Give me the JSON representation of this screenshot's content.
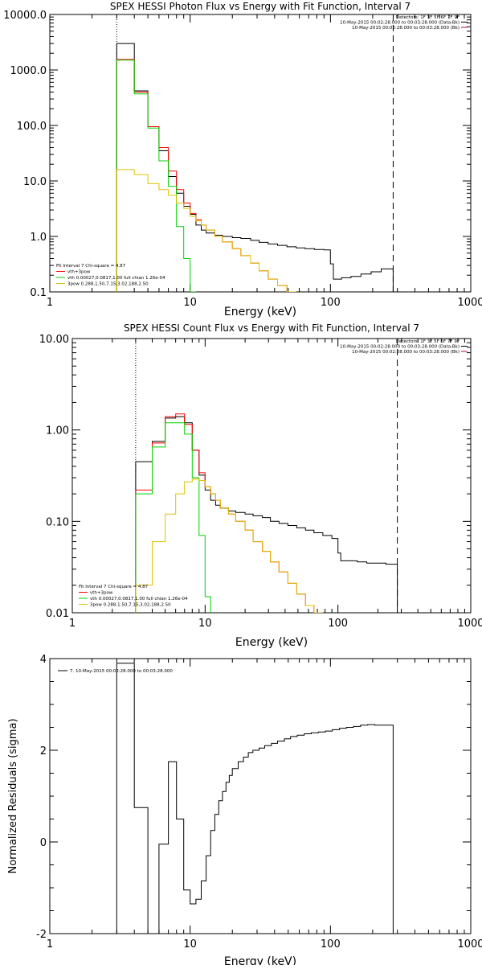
{
  "chart_data": [
    {
      "type": "line",
      "title": "SPEX HESSI Photon Flux vs Energy with Fit Function, Interval 7",
      "xlabel": "Energy (keV)",
      "ylabel": "",
      "xscale": "log",
      "yscale": "log",
      "xlim": [
        1,
        1000
      ],
      "ylim": [
        0.1,
        10000
      ],
      "xticks": [
        1,
        10,
        100,
        1000
      ],
      "xtick_labels": [
        "1",
        "10",
        "100",
        "1000"
      ],
      "yticks": [
        0.1,
        1,
        10,
        100,
        1000,
        10000
      ],
      "ytick_labels": [
        "0.1",
        "1.0",
        "10.0",
        "100.0",
        "1000.0",
        "10000.0"
      ],
      "vlines": [
        {
          "x": 3,
          "style": "dotted"
        },
        {
          "x": 280,
          "style": "dashed"
        }
      ],
      "top_legend": [
        "Detectors: 1F 3F 5F 6F 7F 9F",
        "10-May-2015 00:02:28.000 to 00:03:28.000 (Data-Bk)",
        "10-May-2015 00:02:28.000 to 00:03:28.000 (Bk)"
      ],
      "fit_legend": [
        "Fit Interval 7   Chi-square = 4.87",
        "vth+3pow",
        "vth 0.00027,0.0817,1.00   full chian 1.26e-04",
        "3pow 0.288,1.50,7.15,3.02,188,2.50"
      ],
      "series": [
        {
          "color": "#000000",
          "edges": [
            3,
            4,
            5,
            6,
            7,
            8,
            9,
            10,
            11,
            12,
            13,
            15,
            17,
            20,
            23,
            27,
            31,
            36,
            42,
            49,
            57,
            66,
            77,
            90,
            100,
            105,
            120,
            140,
            165,
            195,
            230,
            280
          ],
          "values": [
            3000,
            420,
            95,
            35,
            12,
            6,
            3.5,
            2.5,
            1.6,
            1.3,
            1.15,
            1.05,
            1.0,
            0.95,
            0.92,
            0.85,
            0.78,
            0.73,
            0.69,
            0.65,
            0.62,
            0.6,
            0.58,
            0.57,
            0.32,
            0.17,
            0.18,
            0.19,
            0.21,
            0.23,
            0.26
          ]
        },
        {
          "color": "#ff0000",
          "edges": [
            3,
            4,
            5,
            6,
            7,
            8,
            9,
            10,
            11,
            12,
            13,
            15,
            17,
            20,
            23,
            27,
            31,
            36,
            42,
            49,
            57
          ],
          "values": [
            1550,
            400,
            95,
            40,
            15,
            7,
            4,
            2.6,
            2.0,
            1.6,
            1.3,
            1.0,
            0.8,
            0.6,
            0.45,
            0.33,
            0.24,
            0.17,
            0.13,
            0.1
          ]
        },
        {
          "color": "#00d000",
          "edges": [
            3,
            4,
            5,
            6,
            7,
            8,
            9,
            10,
            11
          ],
          "values": [
            1500,
            370,
            90,
            23,
            8,
            1.5,
            0.4,
            0.1
          ]
        },
        {
          "color": "#e0c000",
          "edges": [
            3,
            4,
            5,
            6,
            7,
            8,
            9,
            10,
            11,
            12,
            13,
            15,
            17,
            20,
            23,
            27,
            31,
            36,
            42,
            49,
            57
          ],
          "values": [
            16,
            13,
            9,
            7,
            5.5,
            4,
            3.2,
            2.3,
            1.9,
            1.6,
            1.3,
            1.0,
            0.8,
            0.6,
            0.45,
            0.33,
            0.24,
            0.17,
            0.13,
            0.1
          ]
        }
      ]
    },
    {
      "type": "line",
      "title": "SPEX HESSI Count Flux vs Energy with Fit Function, Interval 7",
      "xlabel": "Energy (keV)",
      "ylabel": "",
      "xscale": "log",
      "yscale": "log",
      "xlim": [
        1,
        1000
      ],
      "ylim": [
        0.01,
        10
      ],
      "xticks": [
        1,
        10,
        100,
        1000
      ],
      "xtick_labels": [
        "1",
        "10",
        "100",
        "1000"
      ],
      "yticks": [
        0.01,
        0.1,
        1,
        10
      ],
      "ytick_labels": [
        "0.01",
        "0.10",
        "1.00",
        "10.00"
      ],
      "vlines": [
        {
          "x": 3,
          "style": "dotted"
        },
        {
          "x": 280,
          "style": "dashed"
        }
      ],
      "top_legend": [
        "Detectors: 1F 3F 5F 6F 7F 9F",
        "10-May-2015 00:02:28.000 to 00:03:28.000 (Data-Bk)",
        "10-May-2015 00:02:28.000 to 00:03:28.000 (Bk)"
      ],
      "fit_legend": [
        "Fit Interval 7   Chi-square = 4.87",
        "vth+3pow",
        "vth 0.00027,0.0817,1.00   full chian 1.26e-04",
        "3pow 0.288,1.50,7.15,3.02,188,2.50"
      ],
      "series": [
        {
          "color": "#000000",
          "edges": [
            3,
            4,
            5,
            6,
            7,
            8,
            9,
            10,
            11,
            12,
            13,
            15,
            17,
            20,
            23,
            27,
            31,
            36,
            42,
            49,
            57,
            66,
            77,
            90,
            100,
            105,
            120,
            140,
            165,
            195,
            230,
            280
          ],
          "values": [
            0.45,
            0.75,
            1.35,
            1.4,
            1.2,
            0.6,
            0.32,
            0.22,
            0.17,
            0.15,
            0.14,
            0.13,
            0.125,
            0.12,
            0.115,
            0.11,
            0.1,
            0.095,
            0.09,
            0.085,
            0.08,
            0.075,
            0.07,
            0.065,
            0.045,
            0.037,
            0.037,
            0.036,
            0.035,
            0.035,
            0.034
          ]
        },
        {
          "color": "#ff0000",
          "edges": [
            3,
            4,
            5,
            6,
            7,
            8,
            9,
            10,
            11,
            12,
            13,
            15,
            17,
            20,
            23,
            27,
            31,
            36,
            42,
            49,
            57,
            66,
            77
          ],
          "values": [
            0.22,
            0.72,
            1.4,
            1.5,
            1.15,
            0.6,
            0.34,
            0.24,
            0.2,
            0.17,
            0.14,
            0.12,
            0.1,
            0.08,
            0.06,
            0.047,
            0.036,
            0.028,
            0.021,
            0.016,
            0.012,
            0.01
          ]
        },
        {
          "color": "#00d000",
          "edges": [
            3,
            4,
            5,
            6,
            7,
            8,
            9,
            10,
            11
          ],
          "values": [
            0.2,
            0.65,
            1.2,
            1.2,
            0.9,
            0.3,
            0.07,
            0.015
          ]
        },
        {
          "color": "#e0c000",
          "edges": [
            3,
            4,
            5,
            6,
            7,
            8,
            9,
            10,
            11,
            12,
            13,
            15,
            17,
            20,
            23,
            27,
            31,
            36,
            42,
            49,
            57,
            66,
            77
          ],
          "values": [
            0.02,
            0.06,
            0.12,
            0.2,
            0.27,
            0.29,
            0.28,
            0.24,
            0.2,
            0.17,
            0.14,
            0.12,
            0.1,
            0.08,
            0.06,
            0.047,
            0.036,
            0.028,
            0.021,
            0.016,
            0.012,
            0.01
          ]
        }
      ]
    },
    {
      "type": "line",
      "title": "",
      "xlabel": "Energy (keV)",
      "ylabel": "Normalized Residuals (sigma)",
      "xscale": "log",
      "yscale": "linear",
      "xlim": [
        1,
        1000
      ],
      "ylim": [
        -2,
        4
      ],
      "xticks": [
        1,
        10,
        100,
        1000
      ],
      "xtick_labels": [
        "1",
        "10",
        "100",
        "1000"
      ],
      "yticks": [
        -2,
        0,
        2,
        4
      ],
      "ytick_labels": [
        "-2",
        "0",
        "2",
        "4"
      ],
      "legend": "7. 10-May-2015 00:02:28.000 to 00:03:28.000",
      "series": [
        {
          "color": "#000000",
          "edges": [
            3,
            4,
            5,
            6,
            7,
            8,
            9,
            10,
            11,
            12,
            13,
            14,
            15,
            16,
            17,
            18,
            19,
            20,
            22,
            24,
            26,
            28,
            31,
            34,
            38,
            42,
            47,
            52,
            58,
            65,
            73,
            82,
            92,
            103,
            116,
            130,
            146,
            164,
            184,
            207,
            232,
            280
          ],
          "values": [
            3.9,
            0.75,
            -2.05,
            -0.05,
            1.75,
            0.5,
            -1.05,
            -1.35,
            -1.25,
            -0.85,
            -0.3,
            0.25,
            0.6,
            0.9,
            1.1,
            1.3,
            1.45,
            1.6,
            1.75,
            1.85,
            1.95,
            2.0,
            2.05,
            2.1,
            2.15,
            2.2,
            2.25,
            2.3,
            2.33,
            2.36,
            2.38,
            2.4,
            2.42,
            2.45,
            2.48,
            2.5,
            2.52,
            2.55,
            2.56,
            2.55,
            2.55
          ]
        }
      ]
    }
  ]
}
